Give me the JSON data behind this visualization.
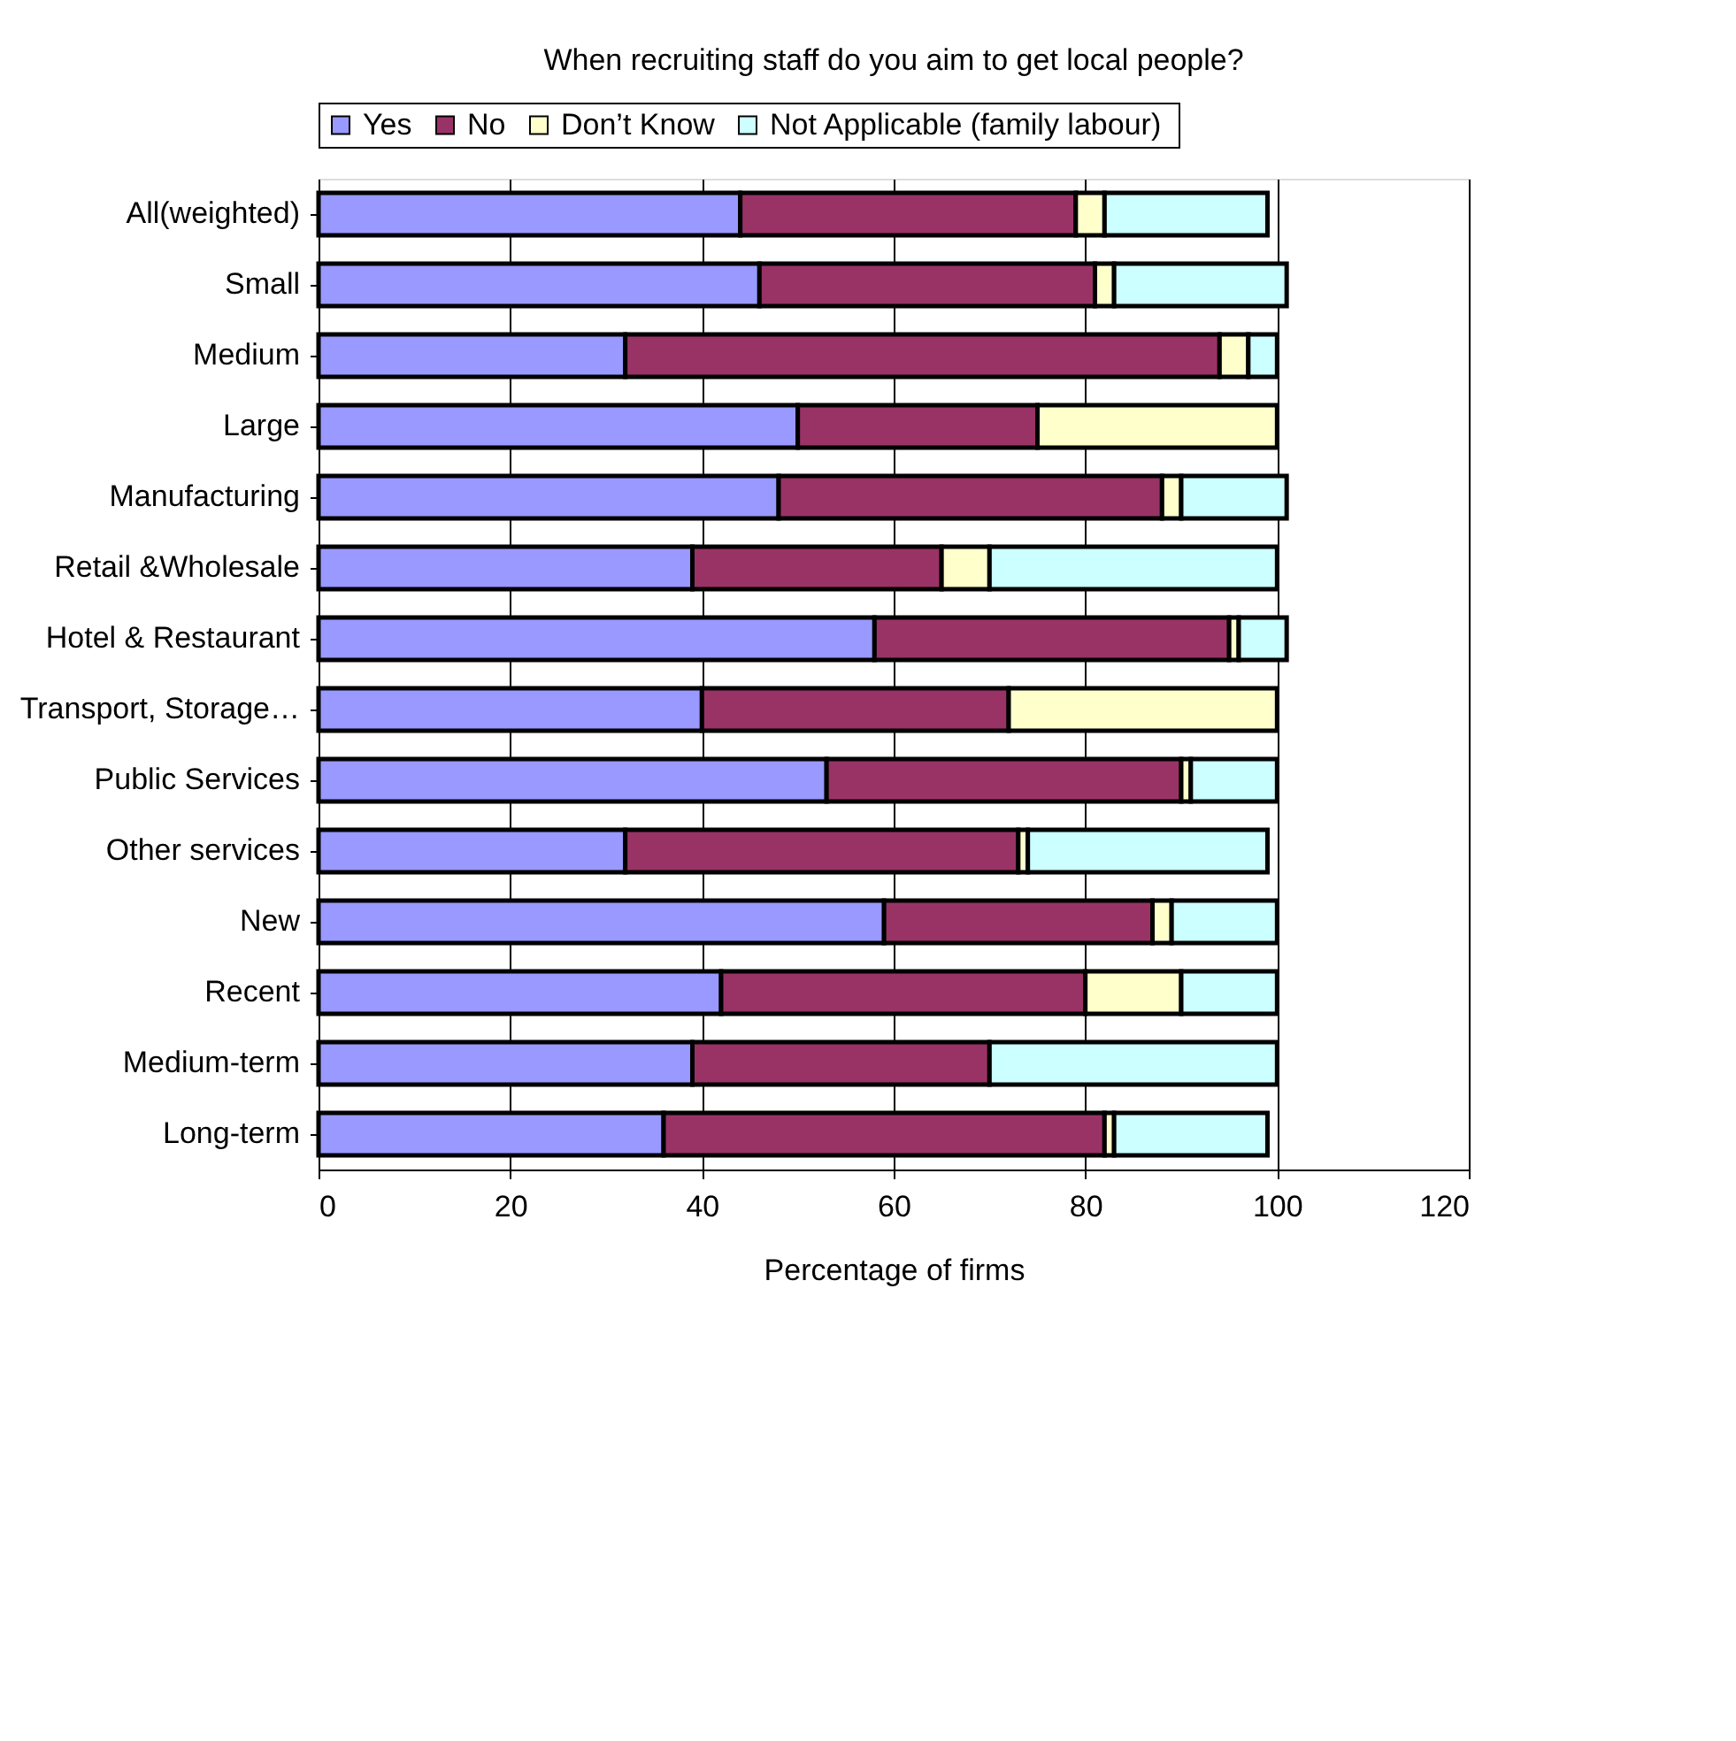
{
  "chart_data": {
    "type": "bar",
    "orientation": "horizontal",
    "stacked": true,
    "title": "When recruiting staff do you aim to get local people?",
    "xlabel": "Percentage of firms",
    "categories": [
      "All(weighted)",
      "Small",
      "Medium",
      "Large",
      "Manufacturing",
      "Retail &Wholesale",
      "Hotel & Restaurant",
      "Transport, Storage…",
      "Public Services",
      "Other services",
      "New",
      "Recent",
      "Medium-term",
      "Long-term"
    ],
    "series": [
      {
        "name": "Yes",
        "color": "#9999ff",
        "values": [
          44,
          46,
          32,
          50,
          48,
          39,
          58,
          40,
          53,
          32,
          59,
          42,
          39,
          36
        ]
      },
      {
        "name": "No",
        "color": "#993366",
        "values": [
          35,
          35,
          62,
          25,
          40,
          26,
          37,
          32,
          37,
          41,
          28,
          38,
          31,
          46
        ]
      },
      {
        "name": "Don’t Know",
        "color": "#ffffcc",
        "values": [
          3,
          2,
          3,
          25,
          2,
          5,
          1,
          28,
          1,
          1,
          2,
          10,
          0,
          1
        ]
      },
      {
        "name": "Not Applicable (family  labour)",
        "color": "#ccffff",
        "values": [
          17,
          18,
          3,
          0,
          11,
          30,
          5,
          0,
          9,
          25,
          11,
          10,
          30,
          16
        ]
      }
    ],
    "xlim": [
      0,
      120
    ],
    "xticks": [
      0,
      20,
      40,
      60,
      80,
      100,
      120
    ],
    "grid": "x",
    "legend": "top"
  }
}
